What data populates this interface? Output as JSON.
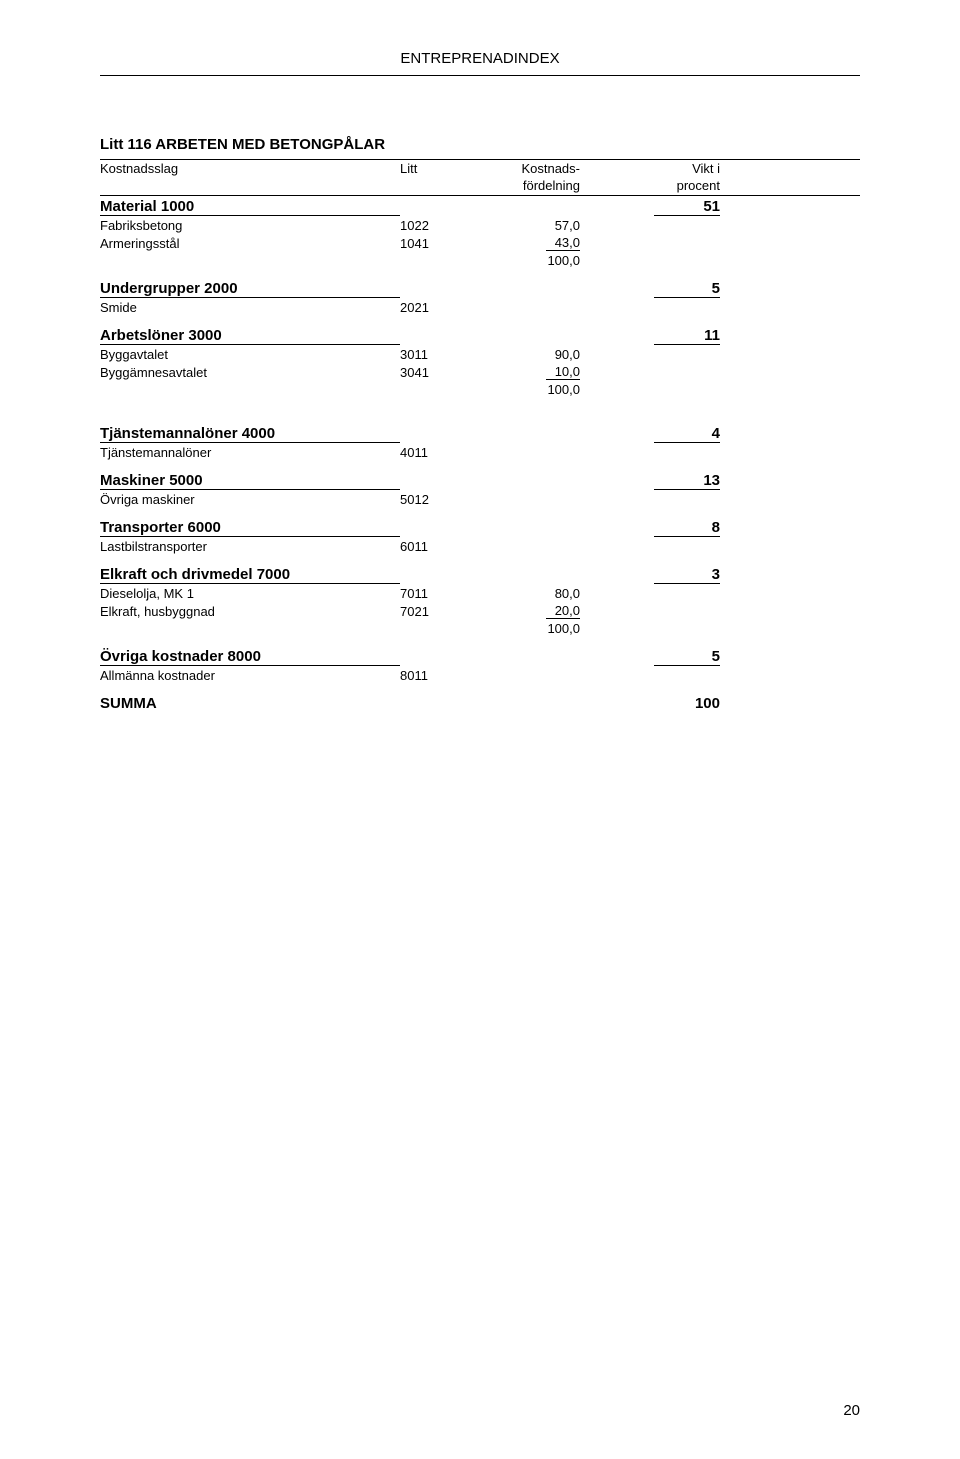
{
  "doc_header": "ENTREPRENADINDEX",
  "section_title": "Litt 116 ARBETEN MED BETONGPÅLAR",
  "table_header": {
    "col1": "Kostnadsslag",
    "col2": "Litt",
    "col3a": "Kostnads-",
    "col3b": "fördelning",
    "col4a": "Vikt i",
    "col4b": "procent"
  },
  "groups": [
    {
      "name": "Material 1000",
      "vikt": "51",
      "rows": [
        {
          "name": "Fabriksbetong",
          "litt": "1022",
          "ford": "57,0"
        },
        {
          "name": "Armeringsstål",
          "litt": "1041",
          "ford": "43,0",
          "underline_ford": true
        }
      ],
      "sum": "100,0",
      "gap_after": "normal"
    },
    {
      "name": "Undergrupper 2000",
      "vikt": "5",
      "rows": [
        {
          "name": "Smide",
          "litt": "2021"
        }
      ],
      "gap_after": "normal"
    },
    {
      "name": "Arbetslöner 3000",
      "vikt": "11",
      "rows": [
        {
          "name": "Byggavtalet",
          "litt": "3011",
          "ford": "90,0"
        },
        {
          "name": "Byggämnesavtalet",
          "litt": "3041",
          "ford": "10,0",
          "underline_ford": true
        }
      ],
      "sum": "100,0",
      "gap_after": "big"
    },
    {
      "name": "Tjänstemannalöner 4000",
      "vikt": "4",
      "rows": [
        {
          "name": "Tjänstemannalöner",
          "litt": "4011"
        }
      ],
      "gap_after": "normal"
    },
    {
      "name": "Maskiner 5000",
      "vikt": "13",
      "rows": [
        {
          "name": "Övriga maskiner",
          "litt": "5012"
        }
      ],
      "gap_after": "normal"
    },
    {
      "name": "Transporter 6000",
      "vikt": "8",
      "rows": [
        {
          "name": "Lastbilstransporter",
          "litt": "6011"
        }
      ],
      "gap_after": "normal"
    },
    {
      "name": "Elkraft och drivmedel 7000",
      "vikt": "3",
      "rows": [
        {
          "name": "Dieselolja, MK 1",
          "litt": "7011",
          "ford": "80,0"
        },
        {
          "name": "Elkraft, husbyggnad",
          "litt": "7021",
          "ford": "20,0",
          "underline_ford": true
        }
      ],
      "sum": "100,0",
      "gap_after": "normal"
    },
    {
      "name": "Övriga kostnader 8000",
      "vikt": "5",
      "rows": [
        {
          "name": "Allmänna kostnader",
          "litt": "8011"
        }
      ],
      "gap_after": "normal"
    }
  ],
  "summa": {
    "label": "SUMMA",
    "value": "100"
  },
  "page_number": "20"
}
